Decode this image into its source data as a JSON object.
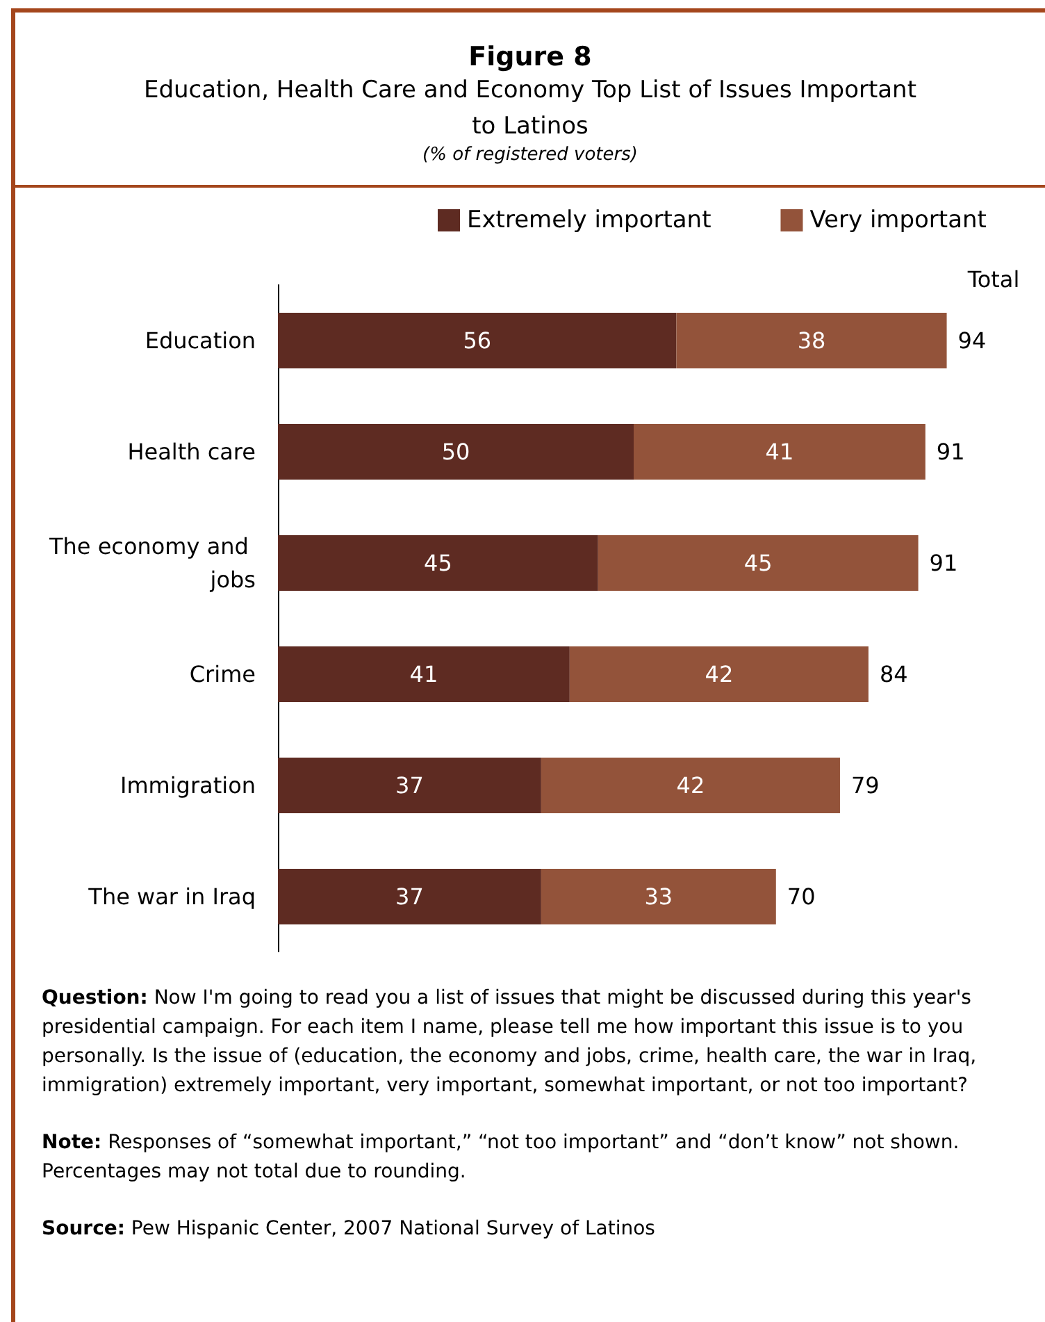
{
  "chart_data": {
    "type": "bar",
    "orientation": "horizontal",
    "stacked": true,
    "data_labels": true,
    "title": "Figure 8",
    "subtitle": "Education, Health Care and Economy Top List of Issues Important to Latinos\n(% of registered voters)",
    "categories": [
      "Education",
      "Health care",
      "The economy and jobs",
      "Crime",
      "Immigration",
      "The war in Iraq"
    ],
    "series": [
      {
        "name": "Extremely important",
        "color": "#5e2b22",
        "values": [
          56,
          50,
          45,
          41,
          37,
          37
        ]
      },
      {
        "name": "Very important",
        "color": "#93533a",
        "values": [
          38,
          41,
          45,
          42,
          42,
          33
        ]
      }
    ],
    "totals": [
      "94",
      "91",
      "91",
      "84",
      "79",
      "70"
    ],
    "legend": "top",
    "annotations": [
      "Total",
      "Question:  Now I'm going to read you a list of issues that might be discussed during this year's presidential campaign. For each item I name, please tell me how important this issue is to you personally.  Is the issue of (education, the economy and jobs, crime, health care, the war in Iraq, immigration) extremely important, very important, somewhat important, or not too important?",
      "Note: Responses of “somewhat important,” “not too important” and “don’t know” not shown.  Percentages may not total due to rounding.",
      "Source: Pew Hispanic Center, 2007 National Survey of Latinos"
    ]
  }
}
